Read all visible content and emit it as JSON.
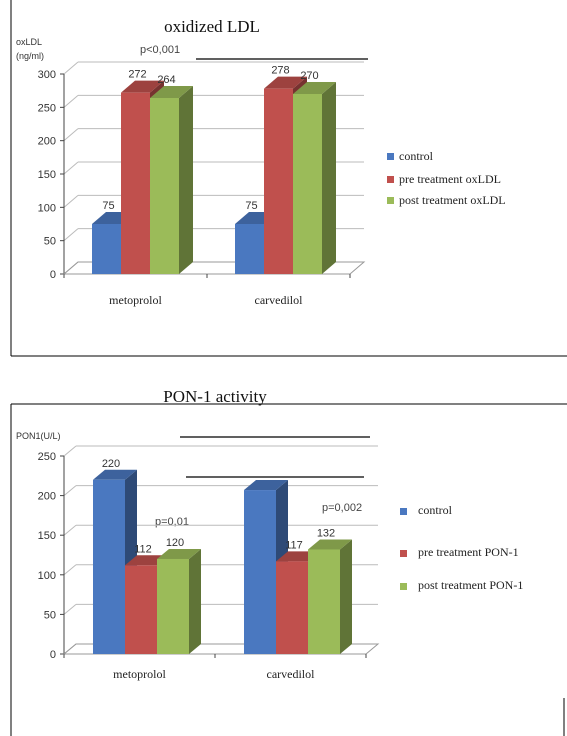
{
  "colors": {
    "control": "#4a78c0",
    "pre": "#c0504d",
    "post": "#9bbb59"
  },
  "chart_data": [
    {
      "type": "bar",
      "title": "oxidized LDL",
      "ylabel_line1": "oxLDL",
      "ylabel_line2": "(ng/ml)",
      "categories": [
        "metoprolol",
        "carvedilol"
      ],
      "series": [
        {
          "name": "control",
          "values": [
            75,
            75
          ],
          "labels": [
            "75",
            "75"
          ]
        },
        {
          "name": "pre treatment oxLDL",
          "values": [
            272,
            278
          ],
          "labels": [
            "272",
            "278"
          ]
        },
        {
          "name": "post treatment oxLDL",
          "values": [
            264,
            270
          ],
          "labels": [
            "264",
            "270"
          ]
        }
      ],
      "yticks": [
        "0",
        "50",
        "100",
        "150",
        "200",
        "250",
        "300"
      ],
      "ylim": [
        0,
        300
      ],
      "annotations": [
        "p<0,001"
      ],
      "legend_position": "right",
      "gridlines": true
    },
    {
      "type": "bar",
      "title": "PON-1 activity",
      "ylabel_line1": "PON1(U/L)",
      "categories": [
        "metoprolol",
        "carvedilol"
      ],
      "series": [
        {
          "name": "control",
          "values": [
            220,
            207
          ],
          "labels": [
            "220",
            ""
          ]
        },
        {
          "name": "pre treatment PON-1",
          "values": [
            112,
            117
          ],
          "labels": [
            "112",
            "117"
          ]
        },
        {
          "name": "post treatment PON-1",
          "values": [
            120,
            132
          ],
          "labels": [
            "120",
            "132"
          ]
        }
      ],
      "yticks": [
        "0",
        "50",
        "100",
        "150",
        "200",
        "250"
      ],
      "ylim": [
        0,
        250
      ],
      "annotations": [
        "p=0,01",
        "p=0,002"
      ],
      "legend_position": "right",
      "gridlines": true
    }
  ]
}
